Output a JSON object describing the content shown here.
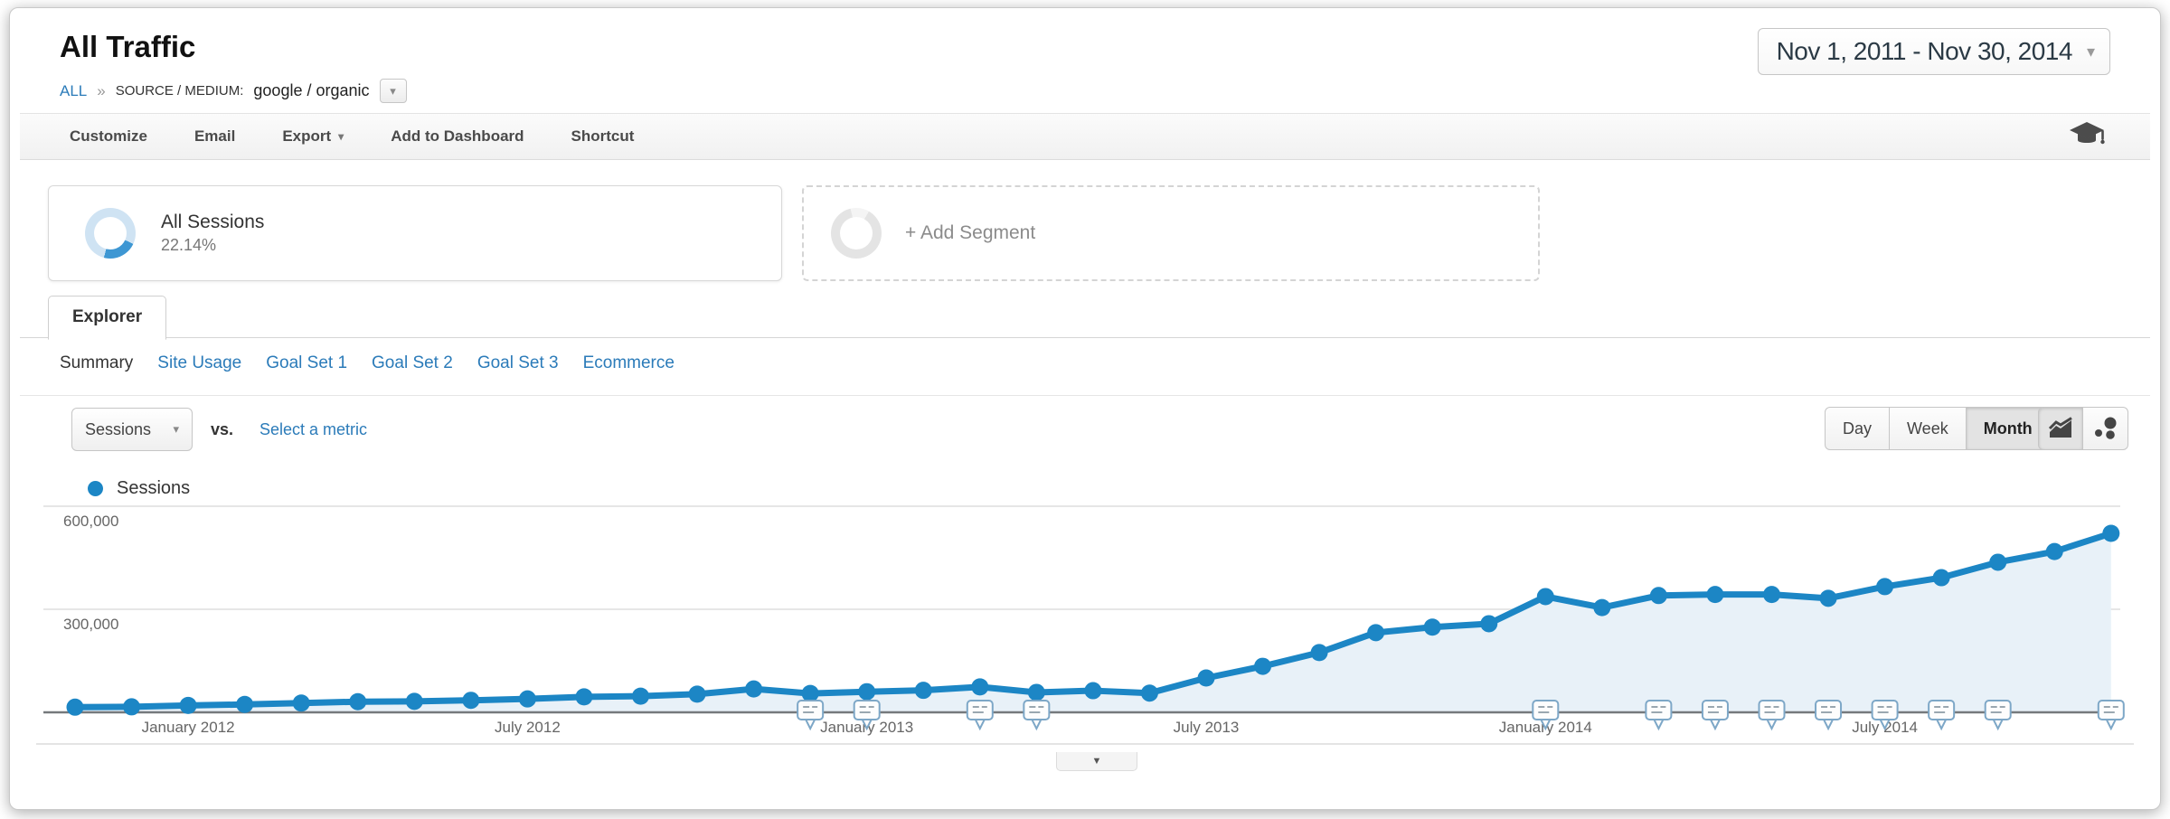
{
  "header": {
    "page_title": "All Traffic",
    "breadcrumb": {
      "root": "ALL",
      "separator": "»",
      "dimension_label": "SOURCE / MEDIUM:",
      "dimension_value": "google / organic"
    },
    "date_range": "Nov 1, 2011 - Nov 30, 2014"
  },
  "toolbar": {
    "items": [
      {
        "label": "Customize"
      },
      {
        "label": "Email"
      },
      {
        "label": "Export"
      },
      {
        "label": "Add to Dashboard"
      },
      {
        "label": "Shortcut"
      }
    ],
    "education_icon": "graduation-cap-icon"
  },
  "segments": {
    "active": {
      "name": "All Sessions",
      "percent": "22.14%"
    },
    "add_label": "+ Add Segment"
  },
  "explorer": {
    "tab_label": "Explorer",
    "subtabs": [
      {
        "label": "Summary",
        "active": true
      },
      {
        "label": "Site Usage",
        "active": false
      },
      {
        "label": "Goal Set 1",
        "active": false
      },
      {
        "label": "Goal Set 2",
        "active": false
      },
      {
        "label": "Goal Set 3",
        "active": false
      },
      {
        "label": "Ecommerce",
        "active": false
      }
    ]
  },
  "metric_controls": {
    "selected_metric": "Sessions",
    "vs_label": "vs.",
    "compare_link": "Select a metric",
    "granularity": [
      {
        "label": "Day",
        "active": false
      },
      {
        "label": "Week",
        "active": false
      },
      {
        "label": "Month",
        "active": true
      }
    ],
    "chart_type_icons": [
      "line-chart-icon",
      "motion-chart-icon"
    ]
  },
  "legend": {
    "series_label": "Sessions",
    "dot_color": "#1c86c5"
  },
  "colors": {
    "accent_blue": "#1c86c5",
    "link_blue": "#2b7bb9",
    "area_fill": "#e8f1f8",
    "donut_active_arc": "#3e97d3",
    "donut_ring": "#cfe3f3",
    "axis_text": "#666666",
    "baseline": "#75797c"
  },
  "chart_data": {
    "type": "line",
    "title": "Sessions by month",
    "categories": [
      "Nov 2011",
      "Dec 2011",
      "Jan 2012",
      "Feb 2012",
      "Mar 2012",
      "Apr 2012",
      "May 2012",
      "Jun 2012",
      "Jul 2012",
      "Aug 2012",
      "Sep 2012",
      "Oct 2012",
      "Nov 2012",
      "Dec 2012",
      "Jan 2013",
      "Feb 2013",
      "Mar 2013",
      "Apr 2013",
      "May 2013",
      "Jun 2013",
      "Jul 2013",
      "Aug 2013",
      "Sep 2013",
      "Oct 2013",
      "Nov 2013",
      "Dec 2013",
      "Jan 2014",
      "Feb 2014",
      "Mar 2014",
      "Apr 2014",
      "May 2014",
      "Jun 2014",
      "Jul 2014",
      "Aug 2014",
      "Sep 2014",
      "Oct 2014",
      "Nov 2014"
    ],
    "series": [
      {
        "name": "Sessions",
        "color": "#1c86c5",
        "fill": "#e8f1f8",
        "values": [
          15000,
          16000,
          20000,
          23000,
          27000,
          31000,
          32000,
          35000,
          39000,
          45000,
          47000,
          53000,
          68000,
          55000,
          60000,
          64000,
          74000,
          58000,
          63000,
          56000,
          100000,
          134000,
          174000,
          232000,
          248000,
          258000,
          337000,
          305000,
          340000,
          343000,
          343000,
          332000,
          366000,
          392000,
          437000,
          468000,
          521000
        ]
      }
    ],
    "xlabel": "",
    "ylabel": "",
    "ylim": [
      0,
      620000
    ],
    "grid": true,
    "legend_position": "top-left",
    "yticks": [
      {
        "value": 300000,
        "label": "300,000"
      },
      {
        "value": 600000,
        "label": "600,000"
      }
    ],
    "xticks": [
      {
        "index": 2,
        "label": "January 2012"
      },
      {
        "index": 8,
        "label": "July 2012"
      },
      {
        "index": 14,
        "label": "January 2013"
      },
      {
        "index": 20,
        "label": "July 2013"
      },
      {
        "index": 26,
        "label": "January 2014"
      },
      {
        "index": 32,
        "label": "July 2014"
      }
    ],
    "annotation_indices": [
      13,
      14,
      16,
      17,
      26,
      28,
      29,
      30,
      31,
      32,
      33,
      34,
      36
    ]
  }
}
